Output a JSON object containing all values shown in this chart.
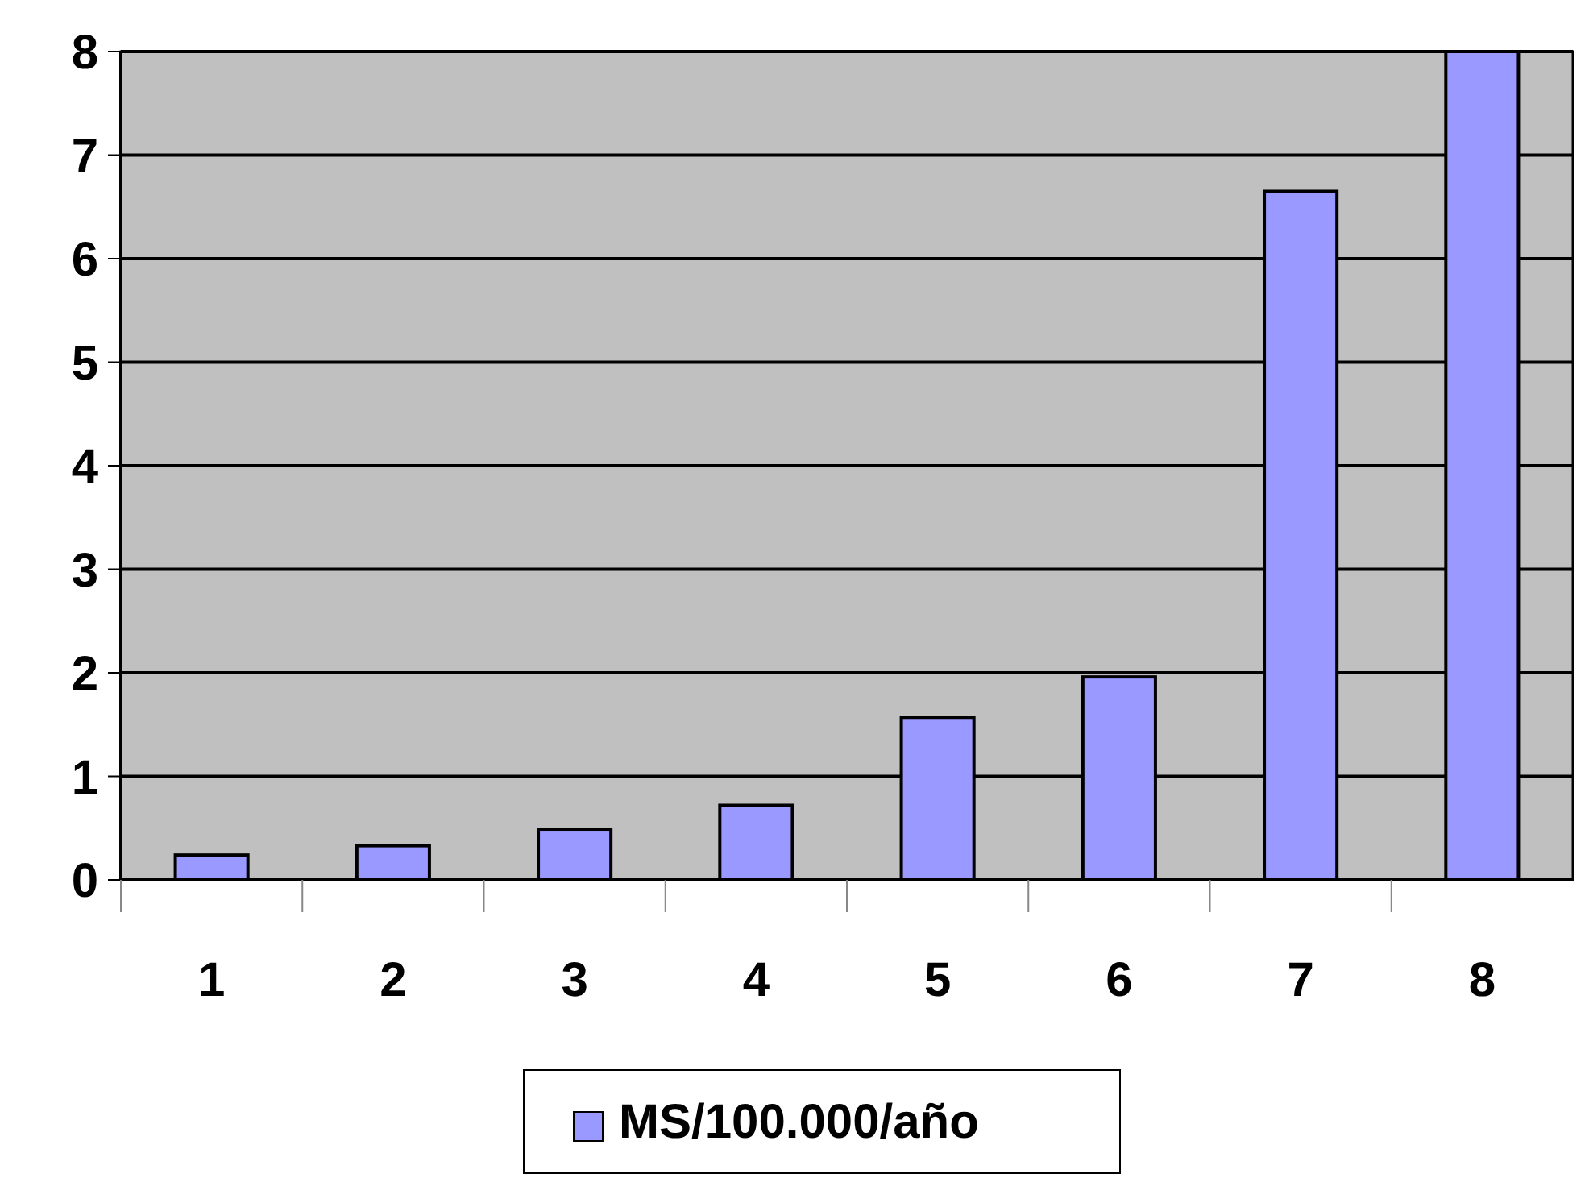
{
  "chart_data": {
    "type": "bar",
    "categories": [
      "1",
      "2",
      "3",
      "4",
      "5",
      "6",
      "7",
      "8"
    ],
    "series": [
      {
        "name": "MS/100.000/año",
        "color": "#9999ff",
        "values": [
          0.24,
          0.33,
          0.49,
          0.72,
          1.57,
          1.96,
          6.65,
          8.0
        ]
      }
    ],
    "ylim": [
      0,
      8
    ],
    "yticks": [
      0,
      1,
      2,
      3,
      4,
      5,
      6,
      7,
      8
    ],
    "grid": "y",
    "legend": "bottom"
  }
}
